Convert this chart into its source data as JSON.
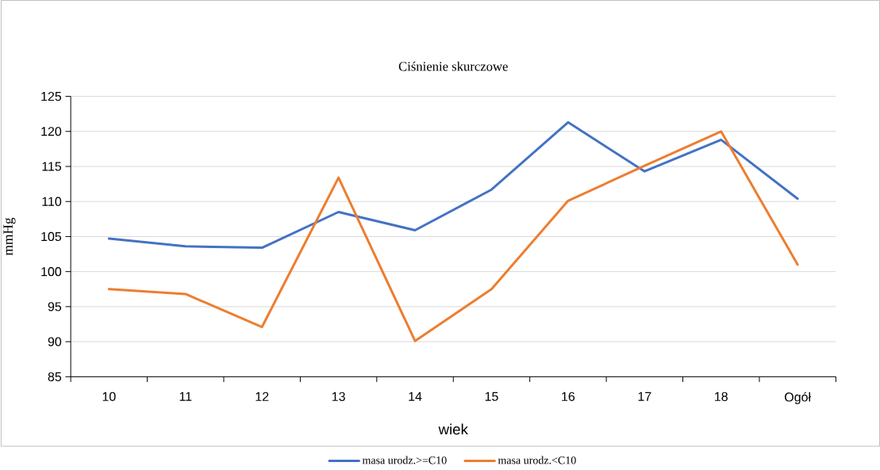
{
  "chart_data": {
    "type": "line",
    "title": "Ciśnienie skurczowe",
    "xlabel": "wiek",
    "ylabel": "mmHg",
    "categories": [
      "10",
      "11",
      "12",
      "13",
      "14",
      "15",
      "16",
      "17",
      "18",
      "Ogół"
    ],
    "series": [
      {
        "name": "masa urodz.>=C10",
        "color": "#4472c4",
        "values": [
          104.7,
          103.6,
          103.4,
          108.5,
          105.9,
          111.7,
          121.3,
          114.3,
          118.8,
          110.4
        ]
      },
      {
        "name": "masa urodz.<C10",
        "color": "#ed7d31",
        "values": [
          97.5,
          96.8,
          92.1,
          113.4,
          90.1,
          97.5,
          110.1,
          115.1,
          120.0,
          101.0
        ]
      }
    ],
    "ylim": [
      85,
      125
    ],
    "yticks": [
      85,
      90,
      95,
      100,
      105,
      110,
      115,
      120,
      125
    ],
    "grid": "y",
    "legend": "bottom",
    "line_style": "solid"
  }
}
